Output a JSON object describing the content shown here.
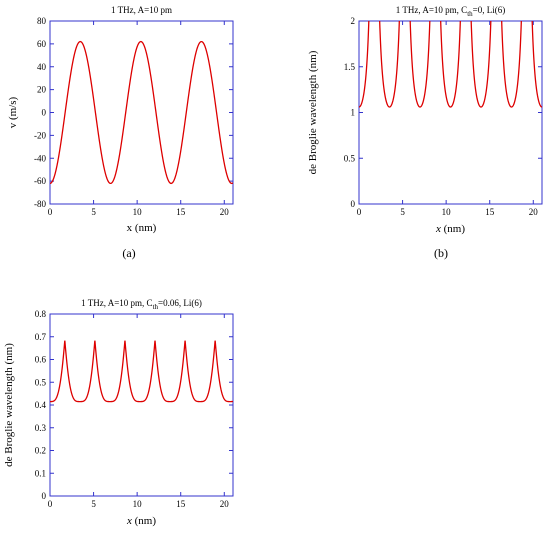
{
  "chart_data": [
    {
      "type": "line",
      "panel_label": "(a)",
      "title": "1 THz, A=10 pm",
      "title_parts": [],
      "xlabel": "x (nm)",
      "ylabel": "v (m/s)",
      "xlim": [
        0,
        21
      ],
      "ylim": [
        -80,
        80
      ],
      "xticks": [
        "0",
        "5",
        "10",
        "15",
        "20"
      ],
      "xtick_values": [
        0,
        5,
        10,
        15,
        20
      ],
      "yticks": [
        "-80",
        "-60",
        "-40",
        "-20",
        "0",
        "20",
        "40",
        "60",
        "80"
      ],
      "ytick_values": [
        -80,
        -60,
        -40,
        -20,
        0,
        20,
        40,
        60,
        80
      ],
      "line_color": "#dd0000",
      "axes_color": "#3333cc",
      "x": [
        0,
        0.5,
        1,
        1.5,
        2,
        2.5,
        3,
        3.4,
        4,
        4.5,
        5,
        5.5,
        6,
        6.5,
        7,
        7.5,
        8,
        8.5,
        9,
        9.5,
        10,
        10.4,
        11,
        11.5,
        12,
        12.5,
        13,
        13.5,
        14,
        14.5,
        15,
        15.5,
        16,
        16.5,
        17,
        17.4,
        18,
        18.5,
        19,
        19.5,
        20,
        20.5,
        21
      ],
      "y": [
        -62,
        -59,
        -47,
        -29,
        -7,
        16,
        37,
        51,
        61,
        60,
        51,
        35,
        15,
        -7,
        -29,
        -47,
        -59,
        -62,
        -58,
        -45,
        -27,
        -10,
        16,
        37,
        52,
        61,
        61,
        52,
        36,
        15,
        -7,
        -29,
        -47,
        -59,
        -62,
        -58,
        -44,
        -26,
        -5,
        17,
        38,
        53,
        -62
      ]
    },
    {
      "type": "line",
      "panel_label": "(b)",
      "title": "",
      "title_parts": [
        "1 THz, A=10 pm, C",
        "th",
        "=0, Li(6)"
      ],
      "xlabel": "x (nm)",
      "ylabel": "de Broglie wavelength (nm)",
      "xlim": [
        0,
        21
      ],
      "ylim": [
        0,
        2
      ],
      "xticks": [
        "0",
        "5",
        "10",
        "15",
        "20"
      ],
      "xtick_values": [
        0,
        5,
        10,
        15,
        20
      ],
      "yticks": [
        "0",
        "0.5",
        "1",
        "1.5",
        "2"
      ],
      "ytick_values": [
        0,
        0.5,
        1,
        1.5,
        2
      ],
      "line_color": "#dd0000",
      "axes_color": "#3333cc",
      "model": {
        "period": 3.5,
        "first_peak": 1.75,
        "ymin": 1.06,
        "ymax": 2.0,
        "kind": "divergent"
      }
    },
    {
      "type": "line",
      "panel_label": "",
      "title": "",
      "title_parts": [
        "1 THz, A=10 pm, C",
        "th",
        "=0.06, Li(6)"
      ],
      "xlabel": "x (nm)",
      "ylabel": "de Broglie wavelength (nm)",
      "xlim": [
        0,
        21
      ],
      "ylim": [
        0,
        0.8
      ],
      "xticks": [
        "0",
        "5",
        "10",
        "15",
        "20"
      ],
      "xtick_values": [
        0,
        5,
        10,
        15,
        20
      ],
      "yticks": [
        "0",
        "0.1",
        "0.2",
        "0.3",
        "0.4",
        "0.5",
        "0.6",
        "0.7",
        "0.8"
      ],
      "ytick_values": [
        0,
        0.1,
        0.2,
        0.3,
        0.4,
        0.5,
        0.6,
        0.7,
        0.8
      ],
      "line_color": "#dd0000",
      "axes_color": "#3333cc",
      "model": {
        "period": 3.45,
        "first_peak": 1.7,
        "ymin": 0.415,
        "ymax": 0.685,
        "kind": "cusp"
      }
    }
  ]
}
